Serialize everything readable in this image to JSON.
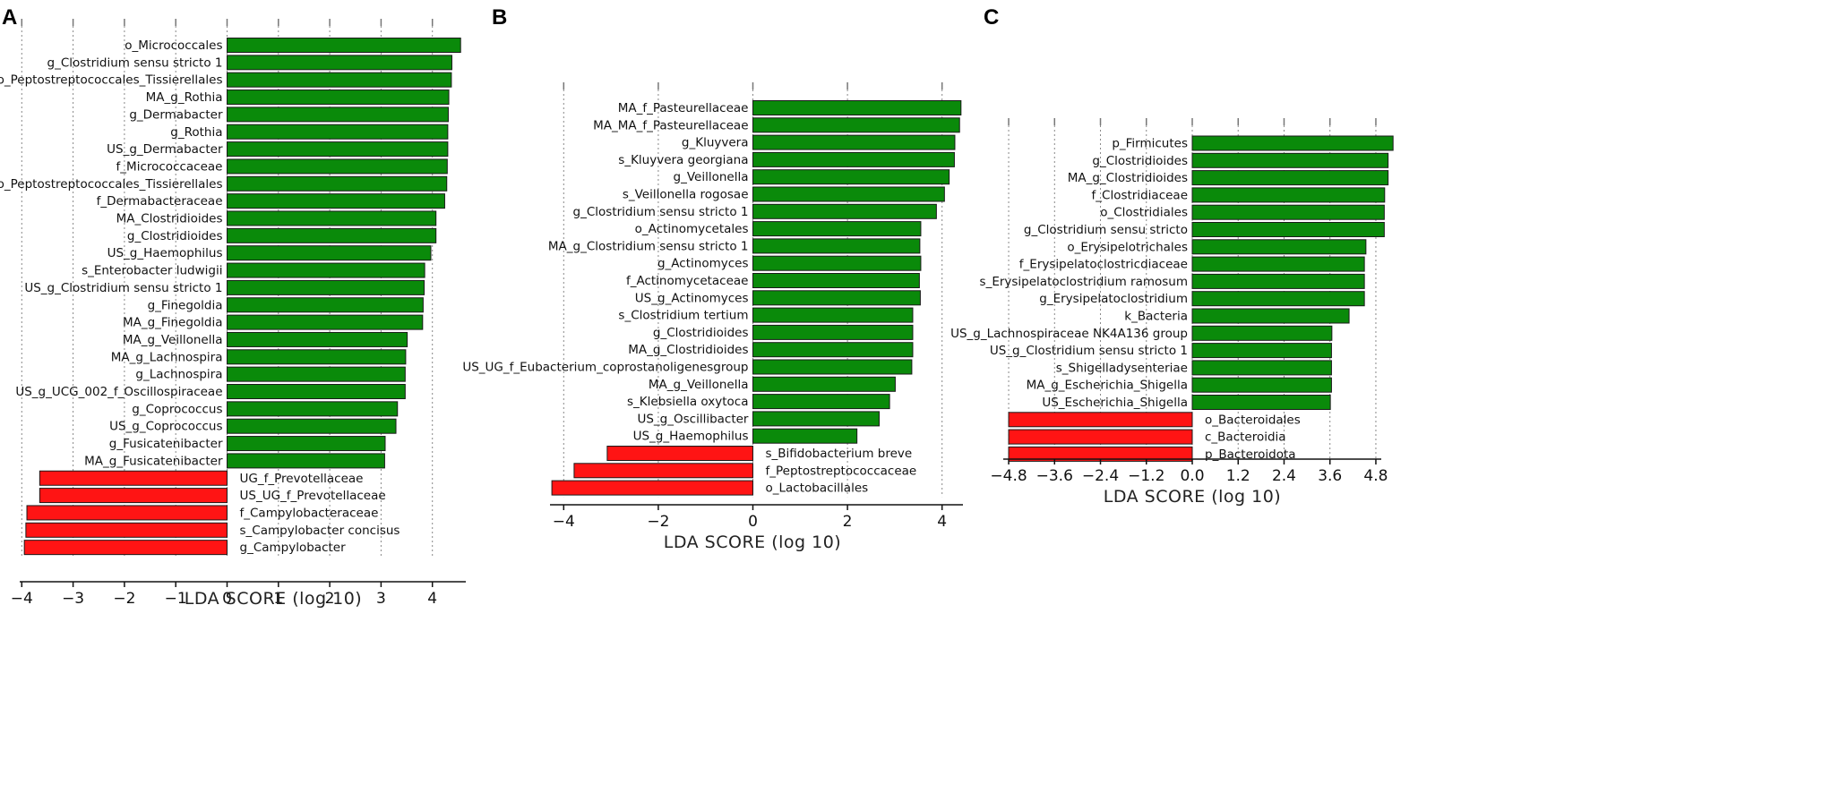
{
  "figure": {
    "panel_letters": [
      "A",
      "B",
      "C"
    ]
  },
  "chart_data": [
    {
      "panel": "A",
      "type": "bar",
      "orientation": "horizontal",
      "xlabel": "LDA SCORE (log 10)",
      "xlim": [
        -4,
        4.6
      ],
      "xticks": [
        -4,
        -3,
        -2,
        -1,
        0,
        1,
        2,
        3,
        4
      ],
      "xtick_labels": [
        "−4",
        "−3",
        "−2",
        "−1",
        "0",
        "1",
        "2",
        "3",
        "4"
      ],
      "grid": true,
      "colors": {
        "positive": "#0a8a0a",
        "negative": "#ff1414"
      },
      "categories": [
        "o_Micrococcales",
        "g_Clostridium sensu stricto 1",
        "o_Peptostreptococcales_Tissierellales",
        "MA_g_Rothia",
        "g_Dermabacter",
        "g_Rothia",
        "US_g_Dermabacter",
        "f_Micrococcaceae",
        "UF_o_Peptostreptococcales_Tissierellales",
        "f_Dermabacteraceae",
        "MA_Clostridioides",
        "g_Clostridioides",
        "US_g_Haemophilus",
        "s_Enterobacter ludwigii",
        "US_g_Clostridium sensu stricto 1",
        "g_Finegoldia",
        "MA_g_Finegoldia",
        "MA_g_Veillonella",
        "MA_g_Lachnospira",
        "g_Lachnospira",
        "US_g_UCG_002_f_Oscillospiraceae",
        "g_Coprococcus",
        "US_g_Coprococcus",
        "g_Fusicatenibacter",
        "MA_g_Fusicatenibacter",
        "UG_f_Prevotellaceae",
        "US_UG_f_Prevotellaceae",
        "f_Campylobacteraceae",
        "s_Campylobacter concisus",
        "g_Campylobacter"
      ],
      "values": [
        4.55,
        4.38,
        4.37,
        4.32,
        4.31,
        4.3,
        4.3,
        4.29,
        4.28,
        4.24,
        4.07,
        4.07,
        3.97,
        3.85,
        3.84,
        3.82,
        3.81,
        3.51,
        3.48,
        3.47,
        3.47,
        3.32,
        3.29,
        3.08,
        3.07,
        -3.65,
        -3.65,
        -3.9,
        -3.92,
        -3.95
      ]
    },
    {
      "panel": "B",
      "type": "bar",
      "orientation": "horizontal",
      "xlabel": "LDA SCORE (log 10)",
      "xlim": [
        -4.25,
        4.4
      ],
      "xticks": [
        -4,
        -2,
        0,
        2,
        4
      ],
      "xtick_labels": [
        "−4",
        "−2",
        "0",
        "2",
        "4"
      ],
      "grid": true,
      "colors": {
        "positive": "#0a8a0a",
        "negative": "#ff1414"
      },
      "categories": [
        "MA_f_Pasteurellaceae",
        "MA_MA_f_Pasteurellaceae",
        "g_Kluyvera",
        "s_Kluyvera georgiana",
        "g_Veillonella",
        "s_Veillonella rogosae",
        "g_Clostridium sensu stricto 1",
        "o_Actinomycetales",
        "MA_g_Clostridium sensu stricto 1",
        "g_Actinomyces",
        "f_Actinomycetaceae",
        "US_g_Actinomyces",
        "s_Clostridium tertium",
        "g_Clostridioides",
        "MA_g_Clostridioides",
        "US_UG_f_Eubacterium_coprostanoligenesgroup",
        "MA_g_Veillonella",
        "s_Klebsiella oxytoca",
        "US_g_Oscillibacter",
        "US_g_Haemophilus",
        "s_Bifidobacterium breve",
        "f_Peptostreptococcaceae",
        "o_Lactobacillales"
      ],
      "values": [
        4.4,
        4.37,
        4.27,
        4.26,
        4.15,
        4.05,
        3.88,
        3.55,
        3.53,
        3.55,
        3.52,
        3.54,
        3.38,
        3.38,
        3.38,
        3.36,
        3.01,
        2.89,
        2.67,
        2.2,
        -3.08,
        -3.78,
        -4.25
      ]
    },
    {
      "panel": "C",
      "type": "bar",
      "orientation": "horizontal",
      "xlabel": "LDA SCORE (log 10)",
      "xlim": [
        -4.8,
        5.3
      ],
      "xticks": [
        -4.8,
        -3.6,
        -2.4,
        -1.2,
        0.0,
        1.2,
        2.4,
        3.6,
        4.8
      ],
      "xtick_labels": [
        "−4.8",
        "−3.6",
        "−2.4",
        "−1.2",
        "0.0",
        "1.2",
        "2.4",
        "3.6",
        "4.8"
      ],
      "grid": true,
      "colors": {
        "positive": "#0a8a0a",
        "negative": "#ff1414"
      },
      "categories": [
        "p_Firmicutes",
        "g_Clostridioides",
        "MA_g_Clostridioides",
        "f_Clostridiaceae",
        "o_Clostridiales",
        "g_Clostridium sensu stricto",
        "o_Erysipelotrichales",
        "f_Erysipelatoclostricdiaceae",
        "s_Erysipelatoclostridium ramosum",
        "g_Erysipelatoclostridium",
        "k_Bacteria",
        "US_g_Lachnospiraceae NK4A136 group",
        "US_g_Clostridium sensu stricto 1",
        "s_Shigelladysenteriae",
        "MA_g_Escherichia_Shigella",
        "US_Escherichia_Shigella",
        "o_Bacteroidales",
        "c_Bacteroidia",
        "p_Bacteroidota"
      ],
      "values": [
        5.25,
        5.12,
        5.12,
        5.03,
        5.02,
        5.02,
        4.54,
        4.5,
        4.5,
        4.5,
        4.1,
        3.65,
        3.64,
        3.64,
        3.64,
        3.61,
        -4.8,
        -4.8,
        -4.8
      ]
    }
  ]
}
